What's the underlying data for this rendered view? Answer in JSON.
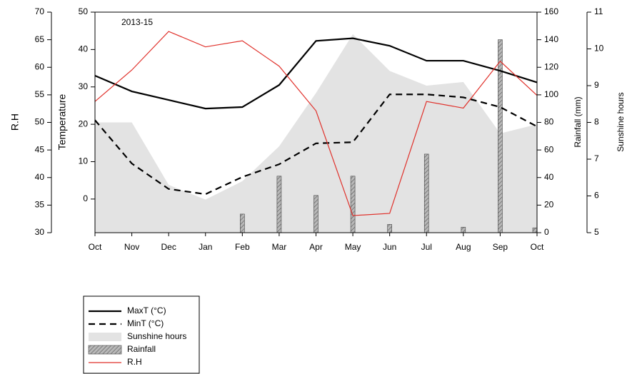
{
  "chart_data": {
    "type": "multi-axis",
    "annotation": "2013-15",
    "categories": [
      "Oct",
      "Nov",
      "Dec",
      "Jan",
      "Feb",
      "Mar",
      "Apr",
      "May",
      "Jun",
      "Jul",
      "Aug",
      "Sep",
      "Oct"
    ],
    "y_label": "Temperature",
    "ylim": [
      -9,
      50
    ],
    "yticks": [
      0,
      10,
      20,
      30,
      40,
      50
    ],
    "y2_label": "Rainfall (mm)",
    "y2lim": [
      0,
      160
    ],
    "y2ticks": [
      0,
      20,
      40,
      60,
      80,
      100,
      120,
      140,
      160
    ],
    "y3_label": "Sunshine hours",
    "y3lim": [
      5,
      11
    ],
    "y3ticks": [
      5,
      6,
      7,
      8,
      9,
      10,
      11
    ],
    "y4_label": "R.H",
    "y4lim": [
      30,
      70
    ],
    "y4ticks": [
      30,
      35,
      40,
      45,
      50,
      55,
      60,
      65,
      70
    ],
    "series": [
      {
        "name": "MaxT (°C)",
        "kind": "line",
        "dash": false,
        "color": "#000000",
        "axis": "y",
        "values": [
          33,
          28.8,
          26.5,
          24.2,
          24.6,
          30.5,
          42.3,
          43,
          41,
          37,
          37,
          34.3,
          31.2
        ]
      },
      {
        "name": "MinT (°C)",
        "kind": "line",
        "dash": true,
        "color": "#000000",
        "axis": "y",
        "values": [
          21.1,
          9.5,
          2.7,
          1.3,
          5.9,
          9.3,
          14.9,
          15.2,
          28,
          28,
          27.2,
          24.6,
          19.4
        ]
      },
      {
        "name": "Sunshine hours",
        "kind": "area",
        "color": "#e3e3e3",
        "axis": "y3",
        "values": [
          8.0,
          8.0,
          6.3,
          5.9,
          6.4,
          7.35,
          8.8,
          10.4,
          9.4,
          9.0,
          9.1,
          7.7,
          7.95
        ]
      },
      {
        "name": "Rainfall",
        "kind": "bar",
        "color": "#a0a0a0",
        "axis": "y2",
        "values": [
          0,
          0,
          0,
          0,
          13.5,
          41,
          27,
          41,
          6,
          57,
          4,
          140,
          3.5
        ]
      },
      {
        "name": "R.H",
        "kind": "line",
        "dash": false,
        "color": "#e0312b",
        "axis": "y4",
        "values": [
          53.8,
          59.5,
          66.5,
          63.7,
          64.8,
          60.2,
          52.1,
          33.1,
          33.5,
          53.8,
          52.6,
          61.1,
          54.9
        ]
      }
    ]
  }
}
